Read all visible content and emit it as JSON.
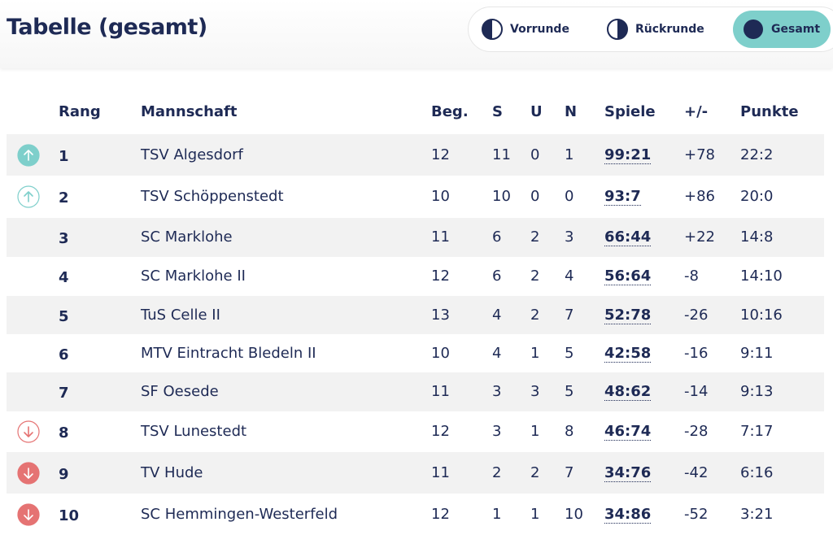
{
  "header": {
    "title": "Tabelle (gesamt)",
    "tabs": [
      "Vorrunde",
      "Rückrunde",
      "Gesamt"
    ]
  },
  "table": {
    "columns": [
      "Rang",
      "Mannschaft",
      "Beg.",
      "S",
      "U",
      "N",
      "Spiele",
      "+/-",
      "Punkte"
    ],
    "rows": [
      [
        1,
        "TSV Algesdorf",
        12,
        11,
        0,
        1,
        "99:21",
        "+78",
        "22:2"
      ],
      [
        2,
        "TSV Schöppenstedt",
        10,
        10,
        0,
        0,
        "93:7",
        "+86",
        "20:0"
      ],
      [
        3,
        "SC Marklohe",
        11,
        6,
        2,
        3,
        "66:44",
        "+22",
        "14:8"
      ],
      [
        4,
        "SC Marklohe II",
        12,
        6,
        2,
        4,
        "56:64",
        "-8",
        "14:10"
      ],
      [
        5,
        "TuS Celle II",
        13,
        4,
        2,
        7,
        "52:78",
        "-26",
        "10:16"
      ],
      [
        6,
        "MTV Eintracht Bledeln II",
        10,
        4,
        1,
        5,
        "42:58",
        "-16",
        "9:11"
      ],
      [
        7,
        "SF Oesede",
        11,
        3,
        3,
        5,
        "48:62",
        "-14",
        "9:13"
      ],
      [
        8,
        "TSV Lunestedt",
        12,
        3,
        1,
        8,
        "46:74",
        "-28",
        "7:17"
      ],
      [
        9,
        "TV Hude",
        11,
        2,
        2,
        7,
        "34:76",
        "-42",
        "6:16"
      ],
      [
        10,
        "SC Hemmingen-Westerfeld",
        12,
        1,
        1,
        10,
        "34:86",
        "-52",
        "3:21"
      ]
    ]
  }
}
